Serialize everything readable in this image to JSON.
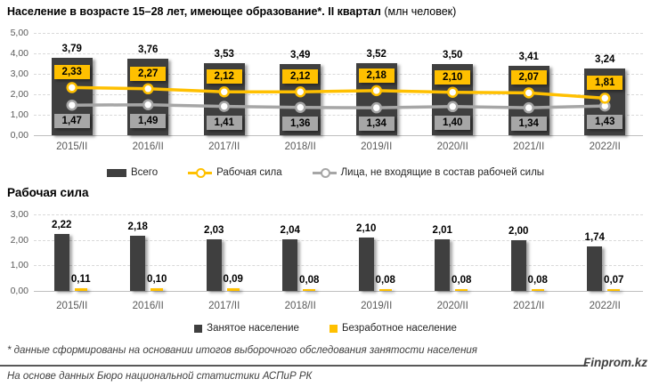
{
  "page": {
    "title_bold": "Население в возрасте 15–28 лет, имеющее образование*. II квартал",
    "title_unit": "(млн человек)",
    "footnote": "* данные сформированы на основании итогов выборочного обследования занятости населения",
    "source": "На основе данных Бюро национальной статистики АСПиР РК",
    "brand": "Finprom.kz"
  },
  "colors": {
    "bar_dark": "#3f3f3f",
    "accent_yellow": "#ffc000",
    "line_gray": "#a6a6a6",
    "axis_text": "#595959",
    "grid": "#d9d9d9"
  },
  "chart_data": [
    {
      "type": "bar",
      "title": "Население в возрасте 15–28 лет, имеющее образование*. II квартал (млн человек)",
      "categories": [
        "2015/II",
        "2016/II",
        "2017/II",
        "2018/II",
        "2019/II",
        "2020/II",
        "2021/II",
        "2022/II"
      ],
      "series": [
        {
          "name": "Всего",
          "kind": "bar",
          "color": "#3f3f3f",
          "values": [
            3.79,
            3.76,
            3.53,
            3.49,
            3.52,
            3.5,
            3.41,
            3.24
          ]
        },
        {
          "name": "Рабочая сила",
          "kind": "line",
          "color": "#ffc000",
          "values": [
            2.33,
            2.27,
            2.12,
            2.12,
            2.18,
            2.1,
            2.07,
            1.81
          ]
        },
        {
          "name": "Лица, не входящие в состав рабочей силы",
          "kind": "line",
          "color": "#a6a6a6",
          "values": [
            1.47,
            1.49,
            1.41,
            1.36,
            1.34,
            1.4,
            1.34,
            1.43
          ]
        }
      ],
      "xlabel": "",
      "ylabel": "",
      "ylim": [
        0,
        5
      ],
      "yticks": [
        "0,00",
        "1,00",
        "2,00",
        "3,00",
        "4,00",
        "5,00"
      ],
      "grid": true,
      "legend_position": "bottom"
    },
    {
      "type": "bar",
      "title": "Рабочая сила",
      "categories": [
        "2015/II",
        "2016/II",
        "2017/II",
        "2018/II",
        "2019/II",
        "2020/II",
        "2021/II",
        "2022/II"
      ],
      "series": [
        {
          "name": "Занятое население",
          "kind": "bar",
          "color": "#3f3f3f",
          "values": [
            2.22,
            2.18,
            2.03,
            2.04,
            2.1,
            2.01,
            2.0,
            1.74
          ]
        },
        {
          "name": "Безработное население",
          "kind": "bar",
          "color": "#ffc000",
          "values": [
            0.11,
            0.1,
            0.09,
            0.08,
            0.08,
            0.08,
            0.08,
            0.07
          ]
        }
      ],
      "xlabel": "",
      "ylabel": "",
      "ylim": [
        0,
        3
      ],
      "yticks": [
        "0,00",
        "1,00",
        "2,00",
        "3,00"
      ],
      "grid": true,
      "legend_position": "bottom"
    }
  ]
}
